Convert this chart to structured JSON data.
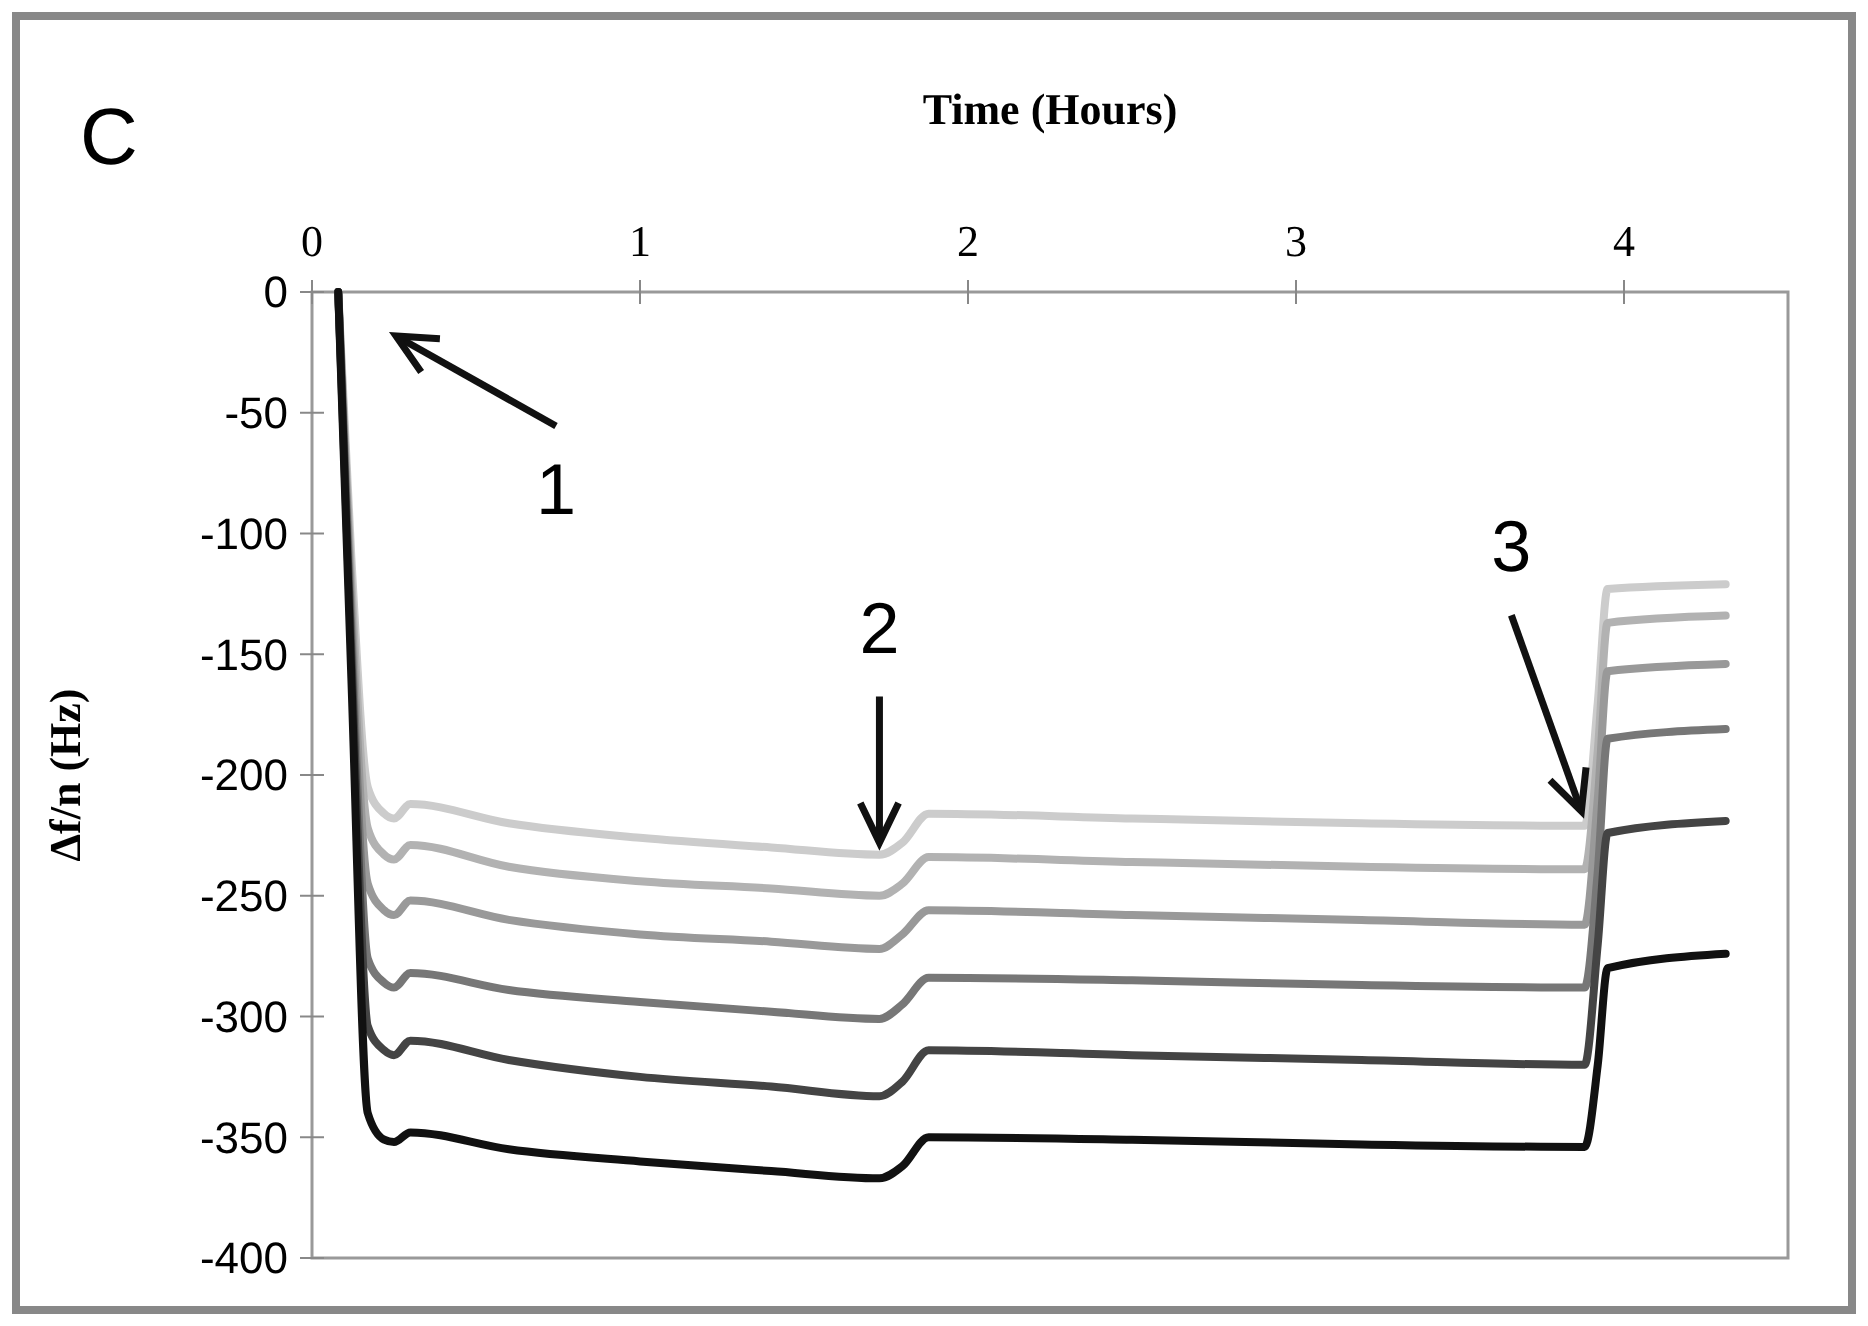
{
  "chart_data": {
    "type": "line",
    "xlabel": "Time (Hours)",
    "ylabel": "Δf/n (Hz)",
    "xlim": [
      0,
      4.5
    ],
    "xticks": [
      0,
      1,
      2,
      3,
      4
    ],
    "ylim": [
      -400,
      0
    ],
    "yticks": [
      0,
      -50,
      -100,
      -150,
      -200,
      -250,
      -300,
      -350,
      -400
    ],
    "grid": false,
    "marker": "none",
    "line_style": "solid",
    "annotations": [
      "C",
      "1",
      {
        "text": "2",
        "x": 1.73,
        "y": -228
      },
      {
        "text": "3",
        "x": 3.87,
        "y": -215
      }
    ],
    "x": [
      0.08,
      0.12,
      0.17,
      0.22,
      0.25,
      0.3,
      0.6,
      1.0,
      1.4,
      1.73,
      1.8,
      1.88,
      2.5,
      3.2,
      3.88,
      3.92,
      3.95,
      4.31
    ],
    "series": [
      {
        "color": "#cccccc",
        "values": [
          0,
          -110,
          -205,
          -216,
          -218,
          -212,
          -220,
          -226,
          -230,
          -233,
          -228,
          -216,
          -218,
          -220,
          -221,
          -170,
          -123,
          -121
        ]
      },
      {
        "color": "#b2b2b2",
        "values": [
          0,
          -120,
          -222,
          -233,
          -235,
          -229,
          -238,
          -244,
          -247,
          -250,
          -245,
          -234,
          -236,
          -238,
          -239,
          -190,
          -137,
          -134
        ]
      },
      {
        "color": "#999999",
        "values": [
          0,
          -130,
          -245,
          -256,
          -258,
          -252,
          -260,
          -266,
          -269,
          -272,
          -266,
          -256,
          -258,
          -260,
          -262,
          -210,
          -157,
          -154
        ]
      },
      {
        "color": "#777777",
        "values": [
          0,
          -140,
          -276,
          -286,
          -288,
          -282,
          -289,
          -294,
          -298,
          -301,
          -295,
          -284,
          -285,
          -287,
          -288,
          -240,
          -185,
          -181
        ]
      },
      {
        "color": "#444444",
        "values": [
          0,
          -150,
          -304,
          -314,
          -316,
          -310,
          -318,
          -325,
          -329,
          -333,
          -327,
          -314,
          -316,
          -318,
          -320,
          -270,
          -224,
          -219
        ]
      },
      {
        "color": "#111111",
        "values": [
          0,
          -160,
          -340,
          -351,
          -352,
          -348,
          -355,
          -360,
          -364,
          -367,
          -362,
          -350,
          -351,
          -353,
          -354,
          -320,
          -280,
          -274
        ]
      }
    ]
  }
}
